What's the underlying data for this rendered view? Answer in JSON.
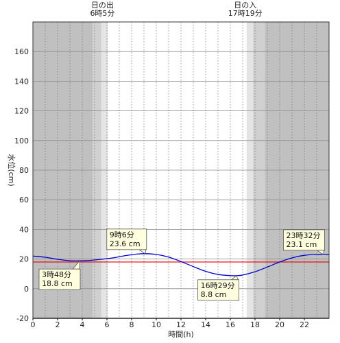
{
  "chart_data": {
    "type": "line",
    "xlabel": "時間(h)",
    "ylabel": "水位(cm)",
    "xlim": [
      0,
      24
    ],
    "ylim": [
      -20,
      180
    ],
    "x_ticks": [
      0,
      2,
      4,
      6,
      8,
      10,
      12,
      14,
      16,
      18,
      20,
      22
    ],
    "y_ticks": [
      -20,
      0,
      20,
      40,
      60,
      80,
      100,
      120,
      140,
      160
    ],
    "grid": {
      "vertical": "dotted every hour",
      "horizontal": "solid every 20"
    },
    "sunrise": {
      "title": "日の出",
      "time_label": "6時5分",
      "hour": 6.08
    },
    "sunset": {
      "title": "日の入",
      "time_label": "17時19分",
      "hour": 17.32
    },
    "twilight": {
      "morning": {
        "nautical_start": 4.85,
        "civil_start": 5.55
      },
      "evening": {
        "civil_end": 17.85,
        "nautical_end": 18.8
      }
    },
    "reference_line": {
      "value": 18,
      "color": "#e00000"
    },
    "series": [
      {
        "color": "#0000cc",
        "x": [
          0,
          1,
          2,
          3,
          3.8,
          4.5,
          5.5,
          6.5,
          7.5,
          8.5,
          9.1,
          10,
          11,
          12,
          13,
          14,
          15,
          16,
          16.5,
          17,
          18,
          19,
          20,
          21,
          22,
          23,
          23.53,
          24
        ],
        "y": [
          22,
          21.2,
          19.8,
          18.9,
          18.8,
          19,
          19.8,
          20.8,
          22.3,
          23.4,
          23.6,
          23.1,
          21.3,
          18.3,
          14.9,
          11.7,
          9.6,
          8.8,
          8.8,
          9.2,
          11.4,
          14.6,
          18,
          20.8,
          22.5,
          23.1,
          23.1,
          23
        ]
      }
    ],
    "annotations": [
      {
        "id": "low1",
        "time": "3時48分",
        "level": "18.8 cm",
        "x": 3.8,
        "y": 18.8
      },
      {
        "id": "high1",
        "time": "9時6分",
        "level": "23.6 cm",
        "x": 9.1,
        "y": 23.6
      },
      {
        "id": "low2",
        "time": "16時29分",
        "level": "8.8 cm",
        "x": 16.48,
        "y": 8.8
      },
      {
        "id": "high2",
        "time": "23時32分",
        "level": "23.1 cm",
        "x": 23.53,
        "y": 23.1
      }
    ],
    "colors": {
      "night": "#c0c0c0",
      "nautical_twilight": "#d0d0d0",
      "civil_twilight": "#e4e4e4",
      "day": "#ffffff",
      "annotation_box": "#ffffe0"
    }
  }
}
